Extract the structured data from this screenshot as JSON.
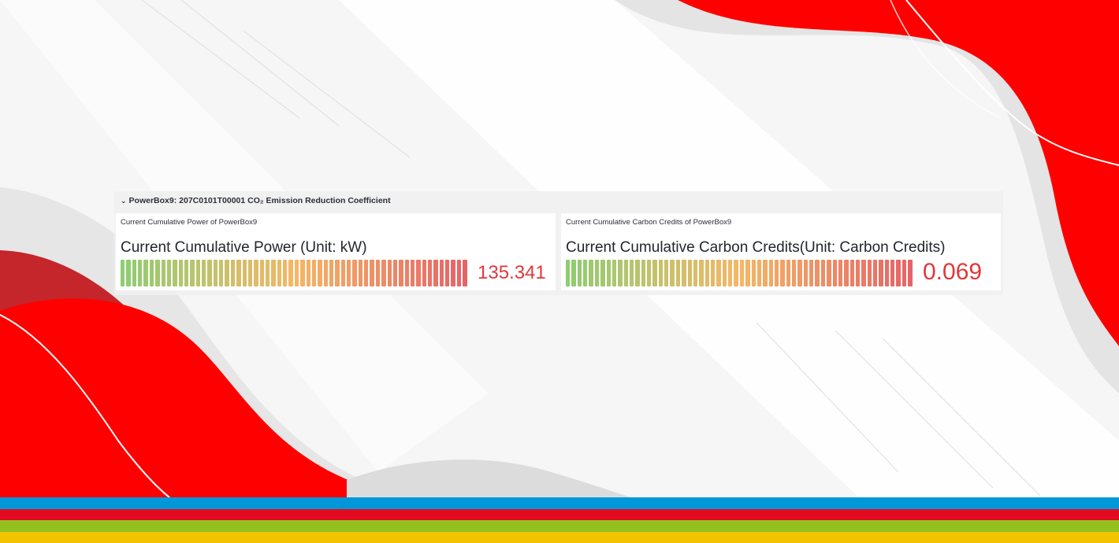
{
  "row": {
    "title": "PowerBox9: 207C0101T00001 CO₂ Emission Reduction Coefficient",
    "collapse_icon": "chevron-down-icon"
  },
  "panels": [
    {
      "title": "Current Cumulative Power of PowerBox9",
      "label": "Current Cumulative Power (Unit: kW)",
      "value": "135.341",
      "gauge_fill_fraction": 1.0
    },
    {
      "title": "Current Cumulative Carbon Credits of PowerBox9",
      "label": "Current Cumulative Carbon Credits(Unit: Carbon Credits)",
      "value": "0.069",
      "gauge_fill_fraction": 1.0
    }
  ],
  "colors": {
    "value_red": "#e0383b",
    "gauge_start": "#6fbf4a",
    "gauge_mid": "#f2a33a",
    "gauge_end": "#e0383b",
    "brand_red": "#ff0000",
    "stripe_blue": "#0098d8",
    "stripe_red": "#e30b22",
    "stripe_green": "#94c11f",
    "stripe_yellow": "#f4c300"
  }
}
